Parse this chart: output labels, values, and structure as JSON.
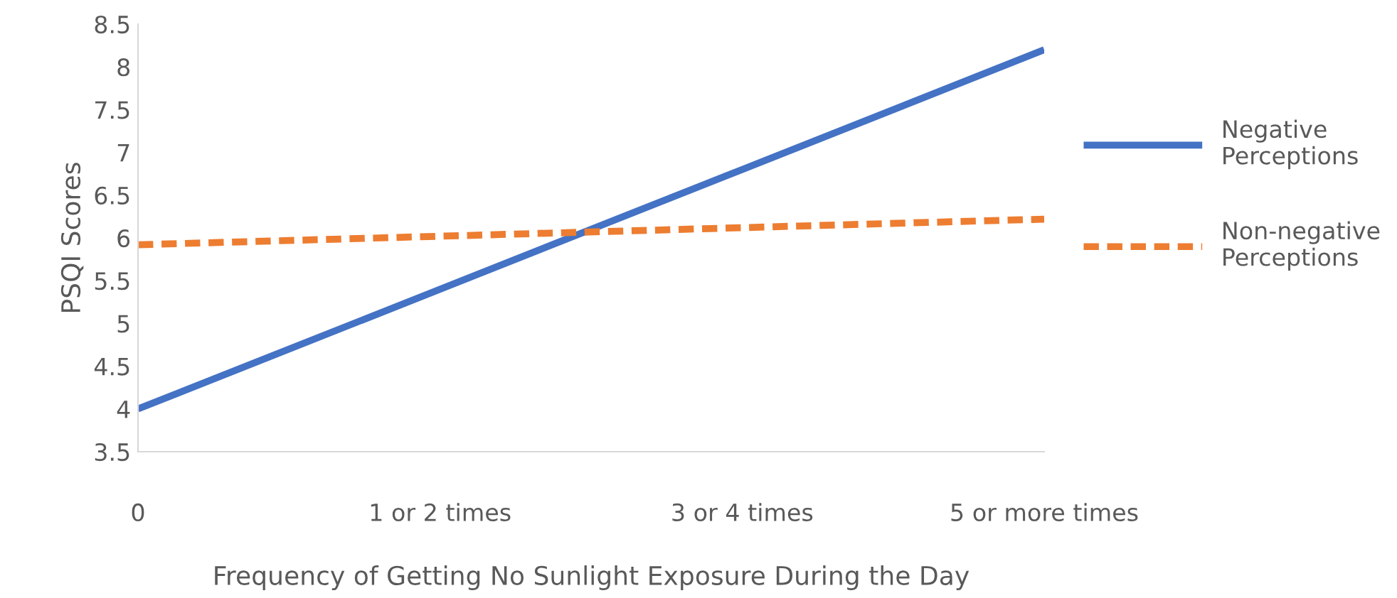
{
  "chart_data": {
    "type": "line",
    "xlabel": "Frequency of Getting No Sunlight Exposure During the Day",
    "ylabel": "PSQI Scores",
    "categories": [
      "0",
      "1 or 2 times",
      "3 or 4 times",
      "5 or more times"
    ],
    "series": [
      {
        "name": "Negative Perceptions",
        "color": "#4472c4",
        "line_style": "solid",
        "values": [
          4.0,
          5.4,
          6.8,
          8.2
        ]
      },
      {
        "name": "Non-negative Perceptions",
        "color": "#ed7d31",
        "line_style": "dashed",
        "values": [
          5.92,
          6.02,
          6.12,
          6.22
        ]
      }
    ],
    "ylim": [
      3.5,
      8.5
    ],
    "yticks": [
      3.5,
      4,
      4.5,
      5,
      5.5,
      6,
      6.5,
      7,
      7.5,
      8,
      8.5
    ],
    "marker": "none",
    "grid": false,
    "legend": "right"
  }
}
